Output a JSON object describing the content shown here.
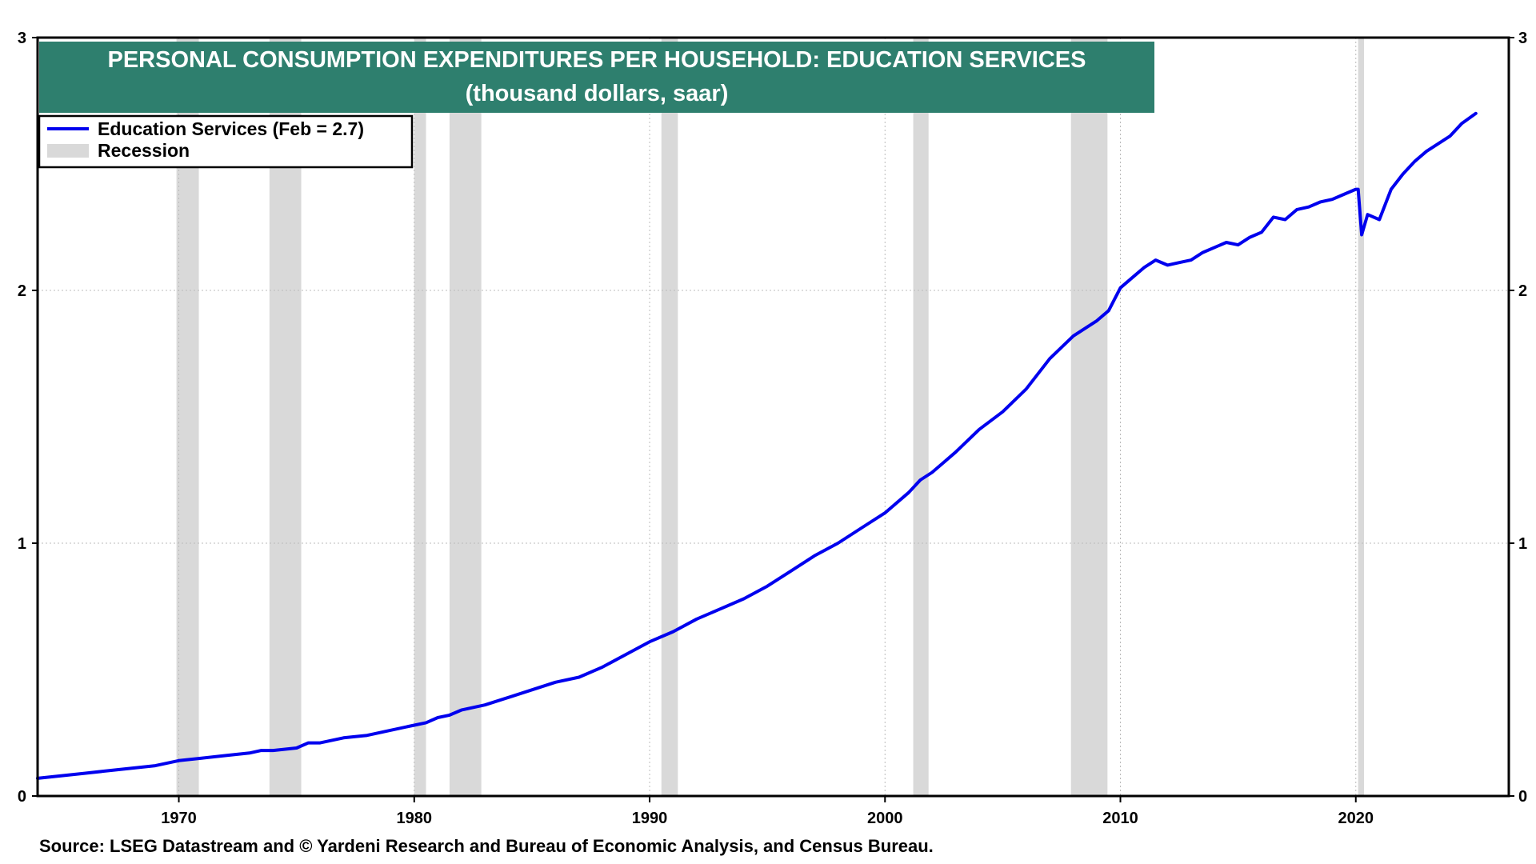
{
  "chart_data": {
    "type": "line",
    "title": "PERSONAL CONSUMPTION EXPENDITURES PER HOUSEHOLD: EDUCATION SERVICES",
    "subtitle": "(thousand dollars, saar)",
    "source": "Source: LSEG Datastream and © Yardeni Research and Bureau of Economic Analysis, and Census Bureau.",
    "xlim": [
      1964,
      2026.5
    ],
    "ylim": [
      0,
      3
    ],
    "x_ticks": [
      1970,
      1980,
      1990,
      2000,
      2010,
      2020
    ],
    "y_ticks": [
      0,
      1,
      2,
      3
    ],
    "grid": true,
    "legend_position": "top-left",
    "colors": {
      "series": "#0000ee",
      "recession": "#d9d9d9",
      "title_bg": "#2e7f6e",
      "grid": "#bbbbbb"
    },
    "legend": [
      {
        "label": "Education Services (Feb = 2.7)",
        "kind": "line"
      },
      {
        "label": "Recession",
        "kind": "band"
      }
    ],
    "recessions": [
      [
        1969.9,
        1970.85
      ],
      [
        1973.85,
        1975.2
      ],
      [
        1980.0,
        1980.5
      ],
      [
        1981.5,
        1982.85
      ],
      [
        1990.5,
        1991.2
      ],
      [
        2001.2,
        2001.85
      ],
      [
        2007.9,
        2009.45
      ],
      [
        2020.1,
        2020.35
      ]
    ],
    "series": [
      {
        "name": "Education Services (Feb = 2.7)",
        "points": [
          [
            1964.0,
            0.07
          ],
          [
            1965.0,
            0.08
          ],
          [
            1966.0,
            0.09
          ],
          [
            1967.0,
            0.1
          ],
          [
            1968.0,
            0.11
          ],
          [
            1969.0,
            0.12
          ],
          [
            1970.0,
            0.14
          ],
          [
            1971.0,
            0.15
          ],
          [
            1972.0,
            0.16
          ],
          [
            1973.0,
            0.17
          ],
          [
            1973.5,
            0.18
          ],
          [
            1974.0,
            0.18
          ],
          [
            1975.0,
            0.19
          ],
          [
            1975.5,
            0.21
          ],
          [
            1976.0,
            0.21
          ],
          [
            1977.0,
            0.23
          ],
          [
            1978.0,
            0.24
          ],
          [
            1979.0,
            0.26
          ],
          [
            1980.0,
            0.28
          ],
          [
            1980.5,
            0.29
          ],
          [
            1981.0,
            0.31
          ],
          [
            1981.5,
            0.32
          ],
          [
            1982.0,
            0.34
          ],
          [
            1983.0,
            0.36
          ],
          [
            1984.0,
            0.39
          ],
          [
            1985.0,
            0.42
          ],
          [
            1986.0,
            0.45
          ],
          [
            1987.0,
            0.47
          ],
          [
            1988.0,
            0.51
          ],
          [
            1989.0,
            0.56
          ],
          [
            1990.0,
            0.61
          ],
          [
            1991.0,
            0.65
          ],
          [
            1992.0,
            0.7
          ],
          [
            1993.0,
            0.74
          ],
          [
            1994.0,
            0.78
          ],
          [
            1995.0,
            0.83
          ],
          [
            1996.0,
            0.89
          ],
          [
            1997.0,
            0.95
          ],
          [
            1998.0,
            1.0
          ],
          [
            1999.0,
            1.06
          ],
          [
            2000.0,
            1.12
          ],
          [
            2001.0,
            1.2
          ],
          [
            2001.5,
            1.25
          ],
          [
            2002.0,
            1.28
          ],
          [
            2002.5,
            1.32
          ],
          [
            2003.0,
            1.36
          ],
          [
            2004.0,
            1.45
          ],
          [
            2005.0,
            1.52
          ],
          [
            2006.0,
            1.61
          ],
          [
            2007.0,
            1.73
          ],
          [
            2008.0,
            1.82
          ],
          [
            2009.0,
            1.88
          ],
          [
            2009.5,
            1.92
          ],
          [
            2010.0,
            2.01
          ],
          [
            2010.5,
            2.05
          ],
          [
            2011.0,
            2.09
          ],
          [
            2011.5,
            2.12
          ],
          [
            2012.0,
            2.1
          ],
          [
            2012.5,
            2.11
          ],
          [
            2013.0,
            2.12
          ],
          [
            2013.5,
            2.15
          ],
          [
            2014.0,
            2.17
          ],
          [
            2014.5,
            2.19
          ],
          [
            2015.0,
            2.18
          ],
          [
            2015.5,
            2.21
          ],
          [
            2016.0,
            2.23
          ],
          [
            2016.5,
            2.29
          ],
          [
            2017.0,
            2.28
          ],
          [
            2017.5,
            2.32
          ],
          [
            2018.0,
            2.33
          ],
          [
            2018.5,
            2.35
          ],
          [
            2019.0,
            2.36
          ],
          [
            2019.5,
            2.38
          ],
          [
            2020.0,
            2.4
          ],
          [
            2020.1,
            2.4
          ],
          [
            2020.25,
            2.22
          ],
          [
            2020.5,
            2.3
          ],
          [
            2021.0,
            2.28
          ],
          [
            2021.5,
            2.4
          ],
          [
            2022.0,
            2.46
          ],
          [
            2022.5,
            2.51
          ],
          [
            2023.0,
            2.55
          ],
          [
            2023.5,
            2.58
          ],
          [
            2024.0,
            2.61
          ],
          [
            2024.5,
            2.66
          ],
          [
            2025.1,
            2.7
          ]
        ]
      }
    ]
  }
}
